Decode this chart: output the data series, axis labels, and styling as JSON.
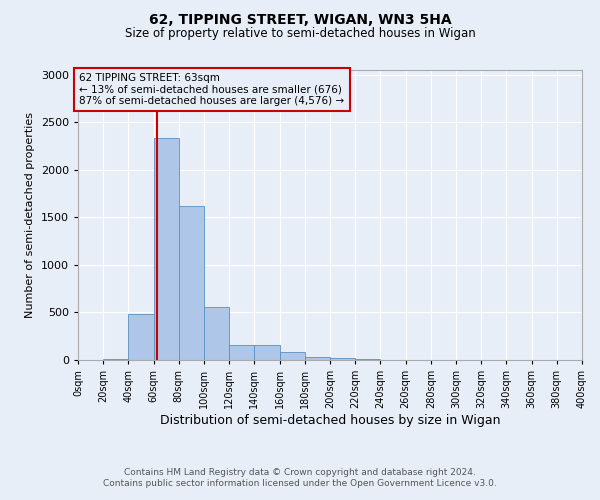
{
  "title": "62, TIPPING STREET, WIGAN, WN3 5HA",
  "subtitle": "Size of property relative to semi-detached houses in Wigan",
  "xlabel": "Distribution of semi-detached houses by size in Wigan",
  "ylabel": "Number of semi-detached properties",
  "footer_line1": "Contains HM Land Registry data © Crown copyright and database right 2024.",
  "footer_line2": "Contains public sector information licensed under the Open Government Licence v3.0.",
  "annotation_title": "62 TIPPING STREET: 63sqm",
  "annotation_line1": "← 13% of semi-detached houses are smaller (676)",
  "annotation_line2": "87% of semi-detached houses are larger (4,576) →",
  "property_size": 63,
  "bar_edges": [
    0,
    20,
    40,
    60,
    80,
    100,
    120,
    140,
    160,
    180,
    200,
    220,
    240,
    260,
    280,
    300,
    320,
    340,
    360,
    380,
    400
  ],
  "bar_heights": [
    5,
    10,
    480,
    2330,
    1620,
    560,
    160,
    155,
    80,
    35,
    20,
    10,
    5,
    3,
    2,
    1,
    1,
    0,
    0,
    0
  ],
  "bar_color": "#aec6e8",
  "bar_edge_color": "#5a8fc2",
  "vline_color": "#cc0000",
  "vline_x": 63,
  "annotation_box_color": "#cc0000",
  "background_color": "#e8eef8",
  "ylim": [
    0,
    3050
  ],
  "yticks": [
    0,
    500,
    1000,
    1500,
    2000,
    2500,
    3000
  ]
}
